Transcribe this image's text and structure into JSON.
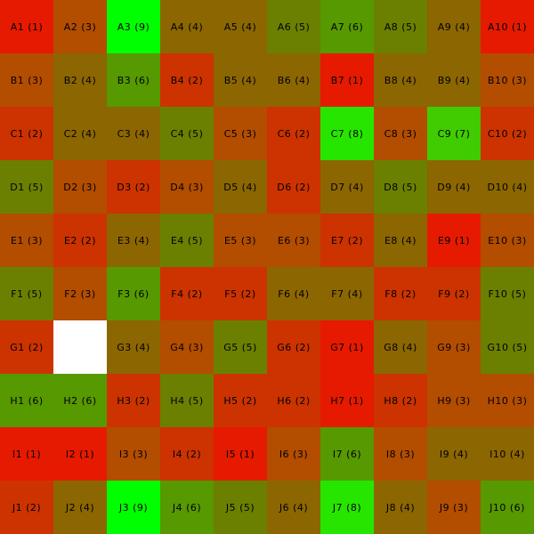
{
  "board": {
    "rows": [
      "A",
      "B",
      "C",
      "D",
      "E",
      "F",
      "G",
      "H",
      "I",
      "J"
    ],
    "columns": 10,
    "palette": {
      "1": "#e61a00",
      "2": "#cc3300",
      "3": "#b34d00",
      "4": "#8c6600",
      "5": "#6b8000",
      "6": "#579900",
      "7": "#40cc00",
      "8": "#26e600",
      "9": "#00ff00",
      "blank": "#ffffff"
    },
    "cells": [
      [
        {
          "label": "A1 (1)",
          "v": 1
        },
        {
          "label": "A2 (3)",
          "v": 3
        },
        {
          "label": "A3 (9)",
          "v": 9
        },
        {
          "label": "A4 (4)",
          "v": 4
        },
        {
          "label": "A5 (4)",
          "v": 4
        },
        {
          "label": "A6 (5)",
          "v": 5
        },
        {
          "label": "A7 (6)",
          "v": 6
        },
        {
          "label": "A8 (5)",
          "v": 5
        },
        {
          "label": "A9 (4)",
          "v": 4
        },
        {
          "label": "A10 (1)",
          "v": 1
        }
      ],
      [
        {
          "label": "B1 (3)",
          "v": 3
        },
        {
          "label": "B2 (4)",
          "v": 4
        },
        {
          "label": "B3 (6)",
          "v": 6
        },
        {
          "label": "B4 (2)",
          "v": 2
        },
        {
          "label": "B5 (4)",
          "v": 4
        },
        {
          "label": "B6 (4)",
          "v": 4
        },
        {
          "label": "B7 (1)",
          "v": 1
        },
        {
          "label": "B8 (4)",
          "v": 4
        },
        {
          "label": "B9 (4)",
          "v": 4
        },
        {
          "label": "B10 (3)",
          "v": 3
        }
      ],
      [
        {
          "label": "C1 (2)",
          "v": 2
        },
        {
          "label": "C2 (4)",
          "v": 4
        },
        {
          "label": "C3 (4)",
          "v": 4
        },
        {
          "label": "C4 (5)",
          "v": 5
        },
        {
          "label": "C5 (3)",
          "v": 3
        },
        {
          "label": "C6 (2)",
          "v": 2
        },
        {
          "label": "C7 (8)",
          "v": 8
        },
        {
          "label": "C8 (3)",
          "v": 3
        },
        {
          "label": "C9 (7)",
          "v": 7
        },
        {
          "label": "C10 (2)",
          "v": 2
        }
      ],
      [
        {
          "label": "D1 (5)",
          "v": 5
        },
        {
          "label": "D2 (3)",
          "v": 3
        },
        {
          "label": "D3 (2)",
          "v": 2
        },
        {
          "label": "D4 (3)",
          "v": 3
        },
        {
          "label": "D5 (4)",
          "v": 4
        },
        {
          "label": "D6 (2)",
          "v": 2
        },
        {
          "label": "D7 (4)",
          "v": 4
        },
        {
          "label": "D8 (5)",
          "v": 5
        },
        {
          "label": "D9 (4)",
          "v": 4
        },
        {
          "label": "D10 (4)",
          "v": 4
        }
      ],
      [
        {
          "label": "E1 (3)",
          "v": 3
        },
        {
          "label": "E2 (2)",
          "v": 2
        },
        {
          "label": "E3 (4)",
          "v": 4
        },
        {
          "label": "E4 (5)",
          "v": 5
        },
        {
          "label": "E5 (3)",
          "v": 3
        },
        {
          "label": "E6 (3)",
          "v": 3
        },
        {
          "label": "E7 (2)",
          "v": 2
        },
        {
          "label": "E8 (4)",
          "v": 4
        },
        {
          "label": "E9 (1)",
          "v": 1
        },
        {
          "label": "E10 (3)",
          "v": 3
        }
      ],
      [
        {
          "label": "F1 (5)",
          "v": 5
        },
        {
          "label": "F2 (3)",
          "v": 3
        },
        {
          "label": "F3 (6)",
          "v": 6
        },
        {
          "label": "F4 (2)",
          "v": 2
        },
        {
          "label": "F5 (2)",
          "v": 2
        },
        {
          "label": "F6 (4)",
          "v": 4
        },
        {
          "label": "F7 (4)",
          "v": 4
        },
        {
          "label": "F8 (2)",
          "v": 2
        },
        {
          "label": "F9 (2)",
          "v": 2
        },
        {
          "label": "F10 (5)",
          "v": 5
        }
      ],
      [
        {
          "label": "G1 (2)",
          "v": 2
        },
        {
          "label": "",
          "v": "blank"
        },
        {
          "label": "G3 (4)",
          "v": 4
        },
        {
          "label": "G4 (3)",
          "v": 3
        },
        {
          "label": "G5 (5)",
          "v": 5
        },
        {
          "label": "G6 (2)",
          "v": 2
        },
        {
          "label": "G7 (1)",
          "v": 1
        },
        {
          "label": "G8 (4)",
          "v": 4
        },
        {
          "label": "G9 (3)",
          "v": 3
        },
        {
          "label": "G10 (5)",
          "v": 5
        }
      ],
      [
        {
          "label": "H1 (6)",
          "v": 6
        },
        {
          "label": "H2 (6)",
          "v": 6
        },
        {
          "label": "H3 (2)",
          "v": 2
        },
        {
          "label": "H4 (5)",
          "v": 5
        },
        {
          "label": "H5 (2)",
          "v": 2
        },
        {
          "label": "H6 (2)",
          "v": 2
        },
        {
          "label": "H7 (1)",
          "v": 1
        },
        {
          "label": "H8 (2)",
          "v": 2
        },
        {
          "label": "H9 (3)",
          "v": 3
        },
        {
          "label": "H10 (3)",
          "v": 3
        }
      ],
      [
        {
          "label": "I1 (1)",
          "v": 1
        },
        {
          "label": "I2 (1)",
          "v": 1
        },
        {
          "label": "I3 (3)",
          "v": 3
        },
        {
          "label": "I4 (2)",
          "v": 2
        },
        {
          "label": "I5 (1)",
          "v": 1
        },
        {
          "label": "I6 (3)",
          "v": 3
        },
        {
          "label": "I7 (6)",
          "v": 6
        },
        {
          "label": "I8 (3)",
          "v": 3
        },
        {
          "label": "I9 (4)",
          "v": 4
        },
        {
          "label": "I10 (4)",
          "v": 4
        }
      ],
      [
        {
          "label": "J1 (2)",
          "v": 2
        },
        {
          "label": "J2 (4)",
          "v": 4
        },
        {
          "label": "J3 (9)",
          "v": 9
        },
        {
          "label": "J4 (6)",
          "v": 6
        },
        {
          "label": "J5 (5)",
          "v": 5
        },
        {
          "label": "J6 (4)",
          "v": 4
        },
        {
          "label": "J7 (8)",
          "v": 8
        },
        {
          "label": "J8 (4)",
          "v": 4
        },
        {
          "label": "J9 (3)",
          "v": 3
        },
        {
          "label": "J10 (6)",
          "v": 6
        }
      ]
    ]
  }
}
